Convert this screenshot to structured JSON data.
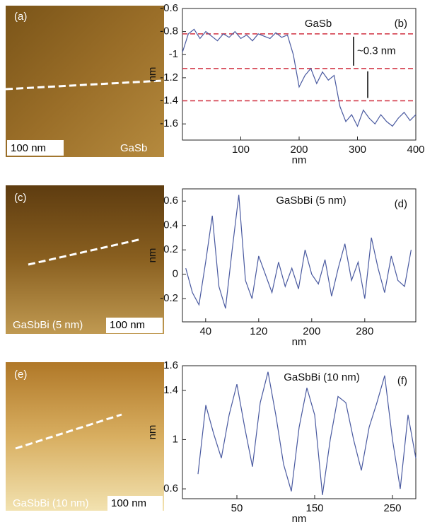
{
  "images": [
    {
      "panel": "(a)",
      "scale": "100 nm",
      "sample": "GaSb"
    },
    {
      "panel": "(c)",
      "scale": "100 nm",
      "sample": "GaSbBi (5 nm)"
    },
    {
      "panel": "(e)",
      "scale": "100 nm",
      "sample": "GaSbBi (10 nm)"
    }
  ],
  "chart_data": [
    {
      "type": "line",
      "panel": "(b)",
      "title": "GaSb",
      "xlabel": "nm",
      "ylabel": "nm",
      "color": "#4a5aa0",
      "x": [
        0,
        10,
        20,
        30,
        40,
        50,
        60,
        70,
        80,
        90,
        100,
        110,
        120,
        130,
        140,
        150,
        160,
        170,
        180,
        190,
        200,
        210,
        220,
        230,
        240,
        250,
        260,
        270,
        280,
        290,
        300,
        310,
        320,
        330,
        340,
        350,
        360,
        370,
        380,
        390,
        400
      ],
      "values": [
        -0.98,
        -0.82,
        -0.78,
        -0.86,
        -0.8,
        -0.84,
        -0.88,
        -0.82,
        -0.85,
        -0.8,
        -0.86,
        -0.83,
        -0.88,
        -0.82,
        -0.84,
        -0.86,
        -0.81,
        -0.85,
        -0.83,
        -1.0,
        -1.28,
        -1.18,
        -1.12,
        -1.25,
        -1.15,
        -1.22,
        -1.18,
        -1.45,
        -1.58,
        -1.52,
        -1.62,
        -1.48,
        -1.55,
        -1.6,
        -1.52,
        -1.58,
        -1.62,
        -1.55,
        -1.5,
        -1.57,
        -1.52
      ],
      "xlim": [
        0,
        400
      ],
      "xticks": [
        100,
        200,
        300,
        400
      ],
      "ylim": [
        -1.74,
        -0.6
      ],
      "yticks": [
        -0.6,
        -0.8,
        -1.0,
        -1.2,
        -1.4,
        -1.6
      ],
      "hlines": [
        -0.82,
        -1.12,
        -1.4
      ],
      "hline_color": "#d03040",
      "annotation": "~0.3 nm"
    },
    {
      "type": "line",
      "panel": "(d)",
      "title": "GaSbBi (5 nm)",
      "xlabel": "nm",
      "ylabel": "nm",
      "color": "#4a5aa0",
      "x": [
        10,
        20,
        30,
        40,
        50,
        60,
        70,
        80,
        90,
        100,
        110,
        120,
        130,
        140,
        150,
        160,
        170,
        180,
        190,
        200,
        210,
        220,
        230,
        240,
        250,
        260,
        270,
        280,
        290,
        300,
        310,
        320,
        330,
        340,
        350
      ],
      "values": [
        0.05,
        -0.15,
        -0.25,
        0.1,
        0.48,
        -0.1,
        -0.28,
        0.2,
        0.65,
        -0.05,
        -0.2,
        0.15,
        0.0,
        -0.15,
        0.1,
        -0.1,
        0.05,
        -0.12,
        0.2,
        0.0,
        -0.08,
        0.12,
        -0.18,
        0.05,
        0.25,
        -0.05,
        0.1,
        -0.2,
        0.3,
        0.05,
        -0.15,
        0.15,
        -0.05,
        -0.1,
        0.2
      ],
      "xlim": [
        5,
        357
      ],
      "xticks": [
        40,
        120,
        200,
        280
      ],
      "ylim": [
        -0.39,
        0.7
      ],
      "yticks": [
        0.6,
        0.4,
        0.2,
        0,
        -0.2
      ]
    },
    {
      "type": "line",
      "panel": "(f)",
      "title": "GaSbBi (10 nm)",
      "xlabel": "nm",
      "ylabel": "nm",
      "color": "#4a5aa0",
      "x": [
        0,
        10,
        20,
        30,
        40,
        50,
        60,
        70,
        80,
        90,
        100,
        110,
        120,
        130,
        140,
        150,
        160,
        170,
        180,
        190,
        200,
        210,
        220,
        230,
        240,
        250,
        260,
        270,
        280
      ],
      "values": [
        0.72,
        1.28,
        1.05,
        0.85,
        1.2,
        1.45,
        1.1,
        0.78,
        1.3,
        1.55,
        1.2,
        0.8,
        0.58,
        1.1,
        1.42,
        1.2,
        0.55,
        1.0,
        1.35,
        1.3,
        1.0,
        0.75,
        1.1,
        1.3,
        1.52,
        1.0,
        0.6,
        1.2,
        0.85
      ],
      "xlim": [
        -20,
        280
      ],
      "xticks": [
        50,
        150,
        250
      ],
      "ylim": [
        0.52,
        1.6
      ],
      "yticks": [
        1.6,
        1.4,
        1.0,
        0.6
      ]
    }
  ]
}
